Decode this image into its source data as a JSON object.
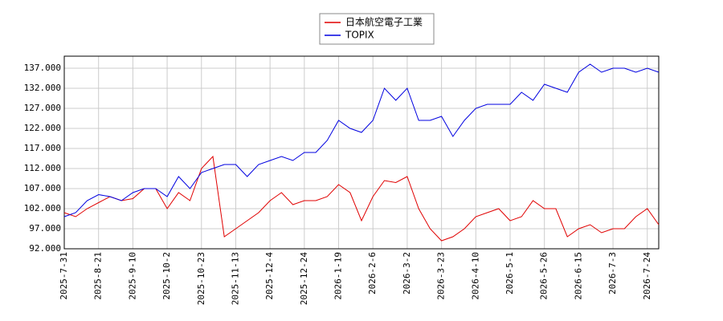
{
  "chart_data": {
    "type": "line",
    "categories": [
      "2025-7-31",
      null,
      null,
      "2025-8-21",
      null,
      null,
      "2025-9-10",
      null,
      null,
      "2025-10-2",
      null,
      null,
      "2025-10-23",
      null,
      null,
      "2025-11-13",
      null,
      null,
      "2025-12-4",
      null,
      null,
      "2025-12-24",
      null,
      null,
      "2026-1-19",
      null,
      null,
      "2026-2-6",
      null,
      null,
      "2026-3-2",
      null,
      null,
      "2026-3-23",
      null,
      null,
      "2026-4-10",
      null,
      null,
      "2026-5-1",
      null,
      null,
      "2026-5-26",
      null,
      null,
      "2026-6-15",
      null,
      null,
      "2026-7-3",
      null,
      null,
      "2026-7-24",
      null
    ],
    "series": [
      {
        "name": "日本航空電子工業",
        "color": "#e00000",
        "values": [
          101,
          100,
          102,
          103.5,
          105,
          104,
          104.5,
          107,
          107,
          102,
          106,
          104,
          112,
          115,
          95,
          97,
          99,
          101,
          104,
          106,
          103,
          104,
          104,
          105,
          108,
          106,
          99,
          105,
          109,
          108.5,
          110,
          102,
          97,
          94,
          95,
          97,
          100,
          101,
          102,
          99,
          100,
          104,
          102,
          102,
          95,
          97,
          98,
          96,
          97,
          97,
          100,
          102,
          98
        ]
      },
      {
        "name": "TOPIX",
        "color": "#0000e0",
        "values": [
          100,
          101,
          104,
          105.5,
          105,
          104,
          106,
          107,
          107,
          105,
          110,
          107,
          111,
          112,
          113,
          113,
          110,
          113,
          114,
          115,
          114,
          116,
          116,
          119,
          124,
          122,
          121,
          124,
          132,
          129,
          132,
          124,
          124,
          125,
          120,
          124,
          127,
          128,
          128,
          128,
          131,
          129,
          133,
          132,
          131,
          136,
          138,
          136,
          137,
          137,
          136,
          137,
          136
        ]
      }
    ],
    "ylim": [
      92,
      140
    ],
    "yticks": [
      {
        "value": 92,
        "label": "92.000"
      },
      {
        "value": 97,
        "label": "97.000"
      },
      {
        "value": 102,
        "label": "102.000"
      },
      {
        "value": 107,
        "label": "107.000"
      },
      {
        "value": 112,
        "label": "112.000"
      },
      {
        "value": 117,
        "label": "117.000"
      },
      {
        "value": 122,
        "label": "122.000"
      },
      {
        "value": 127,
        "label": "127.000"
      },
      {
        "value": 132,
        "label": "132.000"
      },
      {
        "value": 137,
        "label": "137.000"
      }
    ],
    "grid": true
  }
}
